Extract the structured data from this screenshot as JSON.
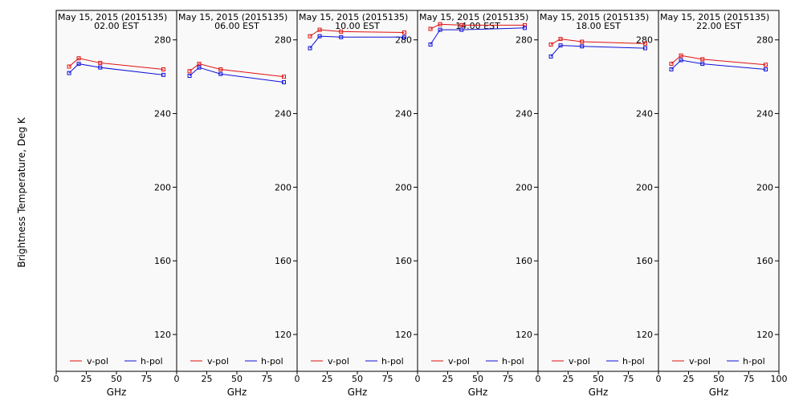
{
  "figure": {
    "ylabel": "Brightness Temperature, Deg K",
    "xlabel": "GHz",
    "background": "#f9f9f9",
    "v_color": "#e01010",
    "h_color": "#1010d8",
    "x_ticks": [
      0,
      25,
      50,
      75,
      100
    ],
    "y_ticks": [
      120,
      160,
      200,
      240,
      280
    ],
    "xlim": [
      0,
      100
    ],
    "ylim": [
      100,
      296
    ]
  },
  "chart_data": [
    {
      "type": "line",
      "title": "May 15, 2015 (2015135)",
      "subtitle": "02.00 EST",
      "x": [
        10.7,
        18.7,
        36.5,
        89.0
      ],
      "series": [
        {
          "name": "v-pol",
          "values": [
            265.5,
            270.0,
            267.5,
            264.0
          ]
        },
        {
          "name": "h-pol",
          "values": [
            262.0,
            267.0,
            265.0,
            261.0
          ]
        }
      ],
      "legend": [
        "v-pol",
        "h-pol"
      ]
    },
    {
      "type": "line",
      "title": "May 15, 2015 (2015135)",
      "subtitle": "06.00 EST",
      "x": [
        10.7,
        18.7,
        36.5,
        89.0
      ],
      "series": [
        {
          "name": "v-pol",
          "values": [
            263.0,
            267.0,
            264.0,
            260.0
          ]
        },
        {
          "name": "h-pol",
          "values": [
            260.5,
            265.0,
            261.5,
            257.0
          ]
        }
      ],
      "legend": [
        "v-pol",
        "h-pol"
      ]
    },
    {
      "type": "line",
      "title": "May 15, 2015 (2015135)",
      "subtitle": "10.00 EST",
      "x": [
        10.7,
        18.7,
        36.5,
        89.0
      ],
      "series": [
        {
          "name": "v-pol",
          "values": [
            282.0,
            285.5,
            284.5,
            284.0
          ]
        },
        {
          "name": "h-pol",
          "values": [
            275.5,
            282.0,
            281.5,
            281.5
          ]
        }
      ],
      "legend": [
        "v-pol",
        "h-pol"
      ]
    },
    {
      "type": "line",
      "title": "May 15, 2015 (2015135)",
      "subtitle": "14.00 EST",
      "x": [
        10.7,
        18.7,
        36.5,
        89.0
      ],
      "series": [
        {
          "name": "v-pol",
          "values": [
            286.0,
            288.5,
            288.0,
            288.0
          ]
        },
        {
          "name": "h-pol",
          "values": [
            277.5,
            285.5,
            285.5,
            286.5
          ]
        }
      ],
      "legend": [
        "v-pol",
        "h-pol"
      ]
    },
    {
      "type": "line",
      "title": "May 15, 2015 (2015135)",
      "subtitle": "18.00 EST",
      "x": [
        10.7,
        18.7,
        36.5,
        89.0
      ],
      "series": [
        {
          "name": "v-pol",
          "values": [
            277.5,
            280.5,
            279.0,
            278.0
          ]
        },
        {
          "name": "h-pol",
          "values": [
            271.0,
            277.0,
            276.5,
            275.5
          ]
        }
      ],
      "legend": [
        "v-pol",
        "h-pol"
      ]
    },
    {
      "type": "line",
      "title": "May 15, 2015 (2015135)",
      "subtitle": "22.00 EST",
      "x": [
        10.7,
        18.7,
        36.5,
        89.0
      ],
      "series": [
        {
          "name": "v-pol",
          "values": [
            267.0,
            271.5,
            269.5,
            266.5
          ]
        },
        {
          "name": "h-pol",
          "values": [
            264.0,
            269.0,
            267.0,
            264.0
          ]
        }
      ],
      "legend": [
        "v-pol",
        "h-pol"
      ]
    }
  ]
}
